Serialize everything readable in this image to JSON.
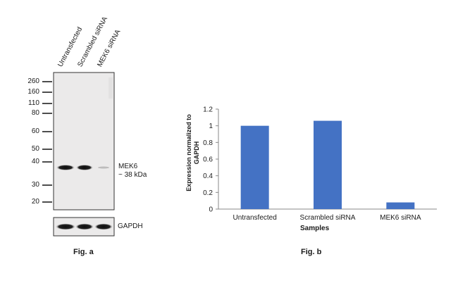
{
  "figure_a": {
    "caption": "Fig. a",
    "lanes": [
      "Untransfected",
      "Scrambled siRNA",
      "MEK6 siRNA"
    ],
    "mw_markers": [
      "260",
      "160",
      "110",
      "80",
      "60",
      "50",
      "40",
      "30",
      "20"
    ],
    "target_label": "MEK6",
    "target_size": "~ 38 kDa",
    "loading_control_label": "GAPDH"
  },
  "chart_data": {
    "type": "bar",
    "title": "",
    "caption": "Fig. b",
    "categories": [
      "Untransfected",
      "Scrambled siRNA",
      "MEK6 siRNA"
    ],
    "values": [
      1.0,
      1.06,
      0.08
    ],
    "xlabel": "Samples",
    "ylabel": "Expression normalized to GAPDH",
    "ylim": [
      0,
      1.2
    ],
    "yticks": [
      "0",
      "0.2",
      "0.4",
      "0.6",
      "0.8",
      "1",
      "1.2"
    ],
    "grid": false,
    "legend": "none",
    "bar_color": "#4472c4"
  }
}
